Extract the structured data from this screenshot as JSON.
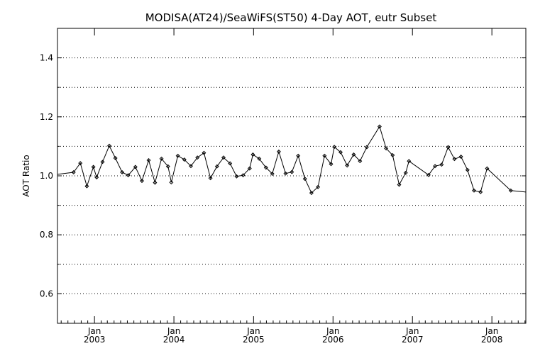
{
  "chart_data": {
    "type": "line",
    "title": "MODISA(AT24)/SeaWiFS(ST50) 4-Day AOT, eutr Subset",
    "xlabel": "",
    "ylabel": "AOT Ratio",
    "ylim": [
      0.5,
      1.5
    ],
    "xlim": [
      "2002-07-15",
      "2008-06-05"
    ],
    "yticks": [
      "0.6",
      "0.8",
      "1.0",
      "1.2",
      "1.4"
    ],
    "ytick_values": [
      0.6,
      0.8,
      1.0,
      1.2,
      1.4
    ],
    "xticks": [
      {
        "date": "2003-01-01",
        "month": "Jan",
        "year": "2003"
      },
      {
        "date": "2004-01-01",
        "month": "Jan",
        "year": "2004"
      },
      {
        "date": "2005-01-01",
        "month": "Jan",
        "year": "2005"
      },
      {
        "date": "2006-01-01",
        "month": "Jan",
        "year": "2006"
      },
      {
        "date": "2007-01-01",
        "month": "Jan",
        "year": "2007"
      },
      {
        "date": "2008-01-01",
        "month": "Jan",
        "year": "2008"
      }
    ],
    "grid": "horizontal-dotted",
    "series": [
      {
        "color": "#000000",
        "x": [
          "2002-07-15",
          "2002-09-27",
          "2002-10-28",
          "2002-11-27",
          "2002-12-27",
          "2003-01-11",
          "2003-02-07",
          "2003-03-10",
          "2003-04-07",
          "2003-05-08",
          "2003-06-05",
          "2003-07-08",
          "2003-08-07",
          "2003-09-07",
          "2003-10-06",
          "2003-11-05",
          "2003-12-05",
          "2003-12-20",
          "2004-01-19",
          "2004-02-18",
          "2004-03-19",
          "2004-04-18",
          "2004-05-18",
          "2004-06-17",
          "2004-07-17",
          "2004-08-16",
          "2004-09-15",
          "2004-10-15",
          "2004-11-14",
          "2004-12-14",
          "2004-12-29",
          "2005-01-27",
          "2005-02-27",
          "2005-03-28",
          "2005-04-27",
          "2005-05-28",
          "2005-06-26",
          "2005-07-25",
          "2005-08-25",
          "2005-09-24",
          "2005-10-24",
          "2005-11-23",
          "2005-12-23",
          "2006-01-07",
          "2006-02-05",
          "2006-03-07",
          "2006-04-06",
          "2006-05-05",
          "2006-06-05",
          "2006-08-03",
          "2006-09-02",
          "2006-10-02",
          "2006-11-01",
          "2006-12-01",
          "2006-12-16",
          "2007-03-16",
          "2007-04-15",
          "2007-05-15",
          "2007-06-14",
          "2007-07-13",
          "2007-08-12",
          "2007-09-11",
          "2007-10-11",
          "2007-11-10",
          "2007-12-10",
          "2008-03-28",
          "2008-06-05"
        ],
        "y": [
          1.005,
          1.012,
          1.043,
          0.965,
          1.03,
          0.995,
          1.047,
          1.102,
          1.06,
          1.012,
          1.002,
          1.03,
          0.983,
          1.053,
          0.977,
          1.058,
          1.032,
          0.978,
          1.068,
          1.055,
          1.033,
          1.062,
          1.078,
          0.992,
          1.032,
          1.062,
          1.042,
          0.998,
          1.002,
          1.025,
          1.072,
          1.058,
          1.028,
          1.007,
          1.082,
          1.008,
          1.013,
          1.068,
          0.99,
          0.942,
          0.962,
          1.068,
          1.04,
          1.098,
          1.08,
          1.035,
          1.072,
          1.05,
          1.097,
          1.167,
          1.093,
          1.07,
          0.97,
          1.01,
          1.05,
          1.003,
          1.033,
          1.038,
          1.097,
          1.057,
          1.065,
          1.02,
          0.95,
          0.945,
          1.025,
          0.95,
          0.945
        ]
      }
    ]
  }
}
